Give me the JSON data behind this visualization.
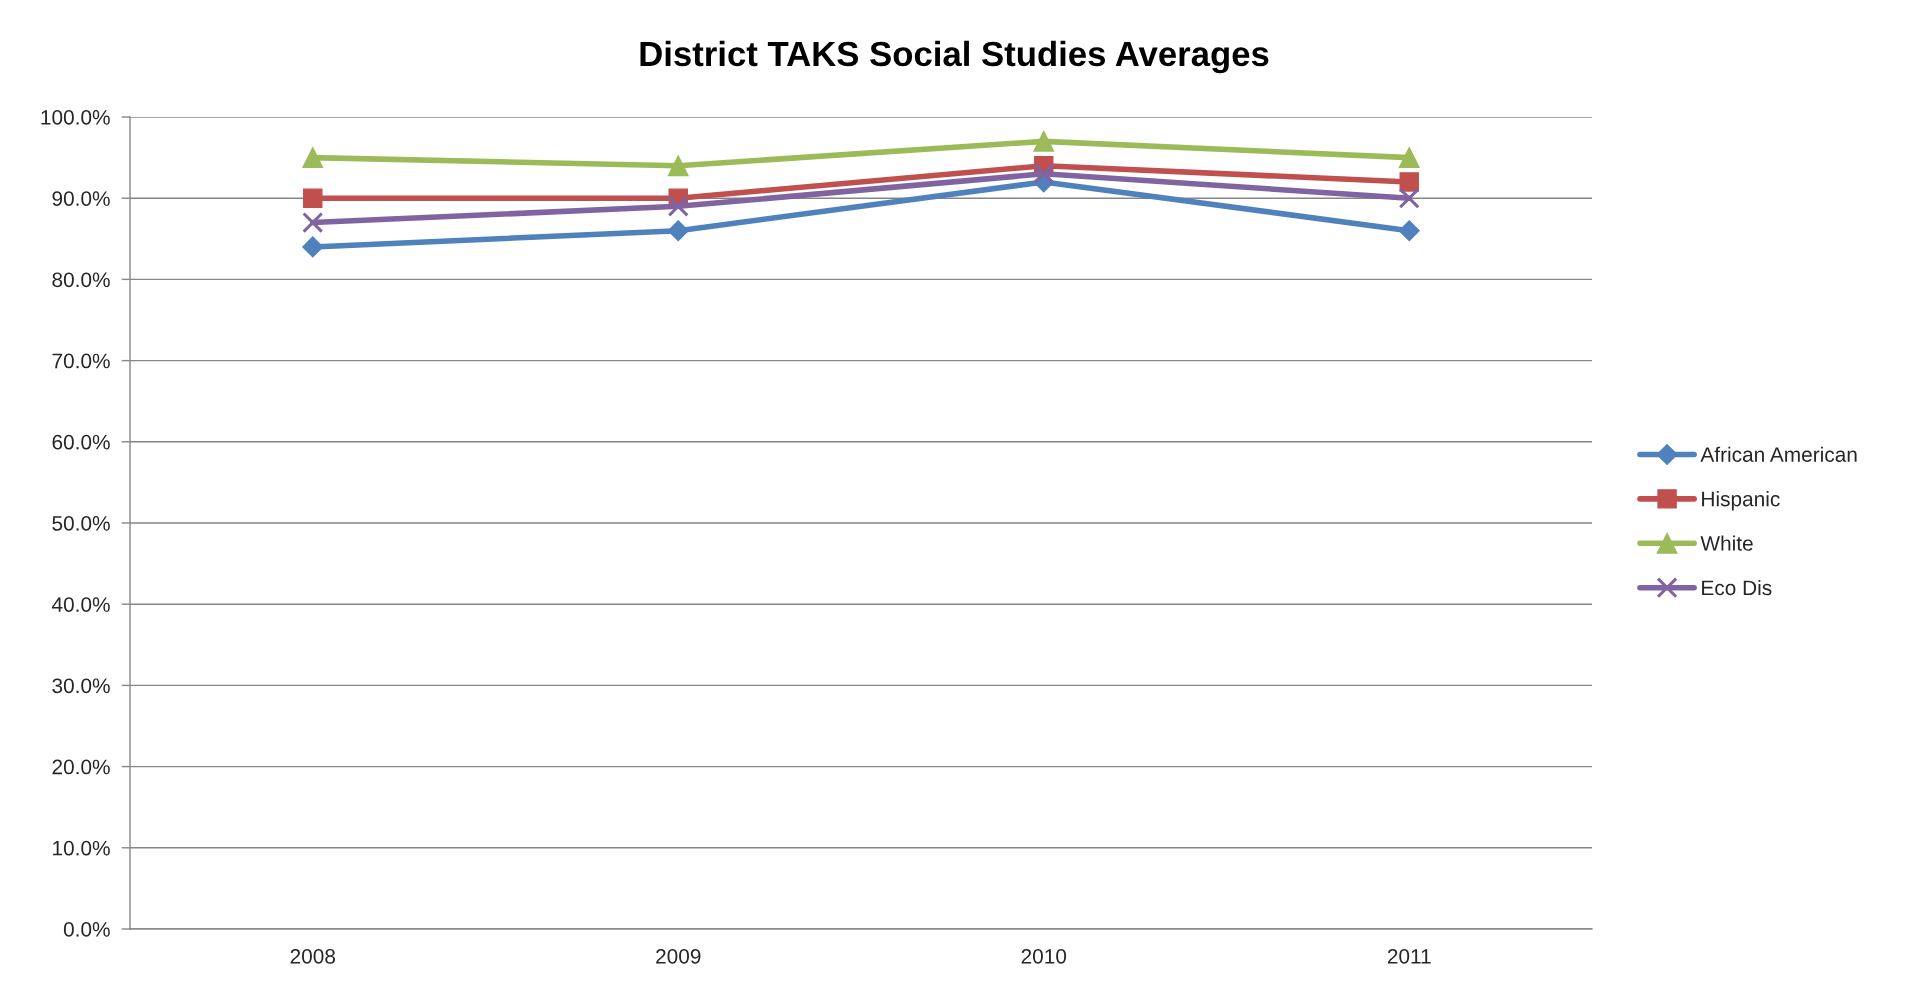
{
  "chart_data": {
    "type": "line",
    "title": "District TAKS Social Studies Averages",
    "categories": [
      "2008",
      "2009",
      "2010",
      "2011"
    ],
    "series": [
      {
        "name": "African American",
        "color": "#4f81bd",
        "marker": "diamond",
        "values": [
          84,
          86,
          92,
          86
        ]
      },
      {
        "name": "Hispanic",
        "color": "#c0504d",
        "marker": "square",
        "values": [
          90,
          90,
          94,
          92
        ]
      },
      {
        "name": "White",
        "color": "#9bbb59",
        "marker": "triangle",
        "values": [
          95,
          94,
          97,
          95
        ]
      },
      {
        "name": "Eco Dis",
        "color": "#8064a2",
        "marker": "cross",
        "values": [
          87,
          89,
          93,
          90
        ]
      }
    ],
    "ylim": [
      0,
      100
    ],
    "yticks": [
      {
        "value": 0,
        "label": "0.0%"
      },
      {
        "value": 10,
        "label": "10.0%"
      },
      {
        "value": 20,
        "label": "20.0%"
      },
      {
        "value": 30,
        "label": "30.0%"
      },
      {
        "value": 40,
        "label": "40.0%"
      },
      {
        "value": 50,
        "label": "50.0%"
      },
      {
        "value": 60,
        "label": "60.0%"
      },
      {
        "value": 70,
        "label": "70.0%"
      },
      {
        "value": 80,
        "label": "80.0%"
      },
      {
        "value": 90,
        "label": "90.0%"
      },
      {
        "value": 100,
        "label": "100.0%"
      }
    ],
    "grid": "y",
    "legend": "right",
    "line_style": "solid"
  }
}
